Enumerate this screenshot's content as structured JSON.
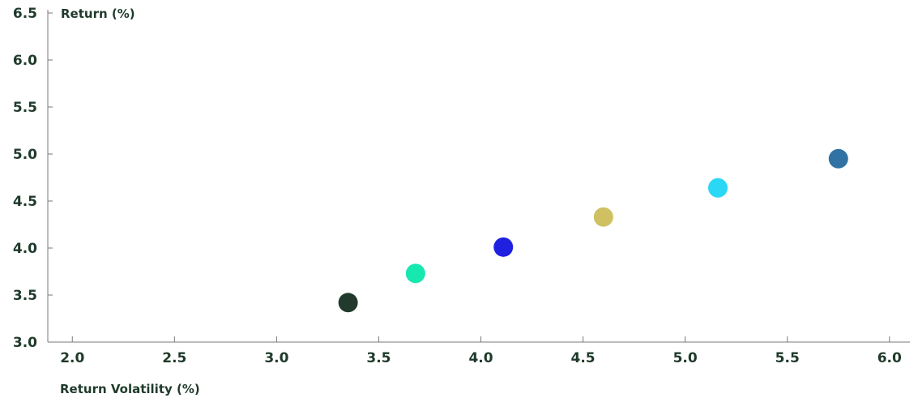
{
  "chart_data": {
    "type": "scatter",
    "title": "",
    "xlabel": "Return Volatility (%)",
    "ylabel": "Return (%)",
    "xlim": [
      1.88,
      6.1
    ],
    "ylim": [
      3.0,
      6.5
    ],
    "x_ticks": [
      "2.0",
      "2.5",
      "3.0",
      "3.5",
      "4.0",
      "4.5",
      "5.0",
      "5.5",
      "6.0"
    ],
    "y_ticks": [
      "3.0",
      "3.5",
      "4.0",
      "4.5",
      "5.0",
      "5.5",
      "6.0",
      "6.5"
    ],
    "grid": false,
    "legend": "none",
    "points": [
      {
        "x": 3.35,
        "y": 3.42,
        "color": "#213a2d"
      },
      {
        "x": 3.68,
        "y": 3.73,
        "color": "#16e8b0"
      },
      {
        "x": 4.11,
        "y": 4.01,
        "color": "#2020e0"
      },
      {
        "x": 4.6,
        "y": 4.33,
        "color": "#cfc062"
      },
      {
        "x": 5.16,
        "y": 4.64,
        "color": "#2ad8f5"
      },
      {
        "x": 5.75,
        "y": 4.95,
        "color": "#2f72a3"
      }
    ]
  }
}
